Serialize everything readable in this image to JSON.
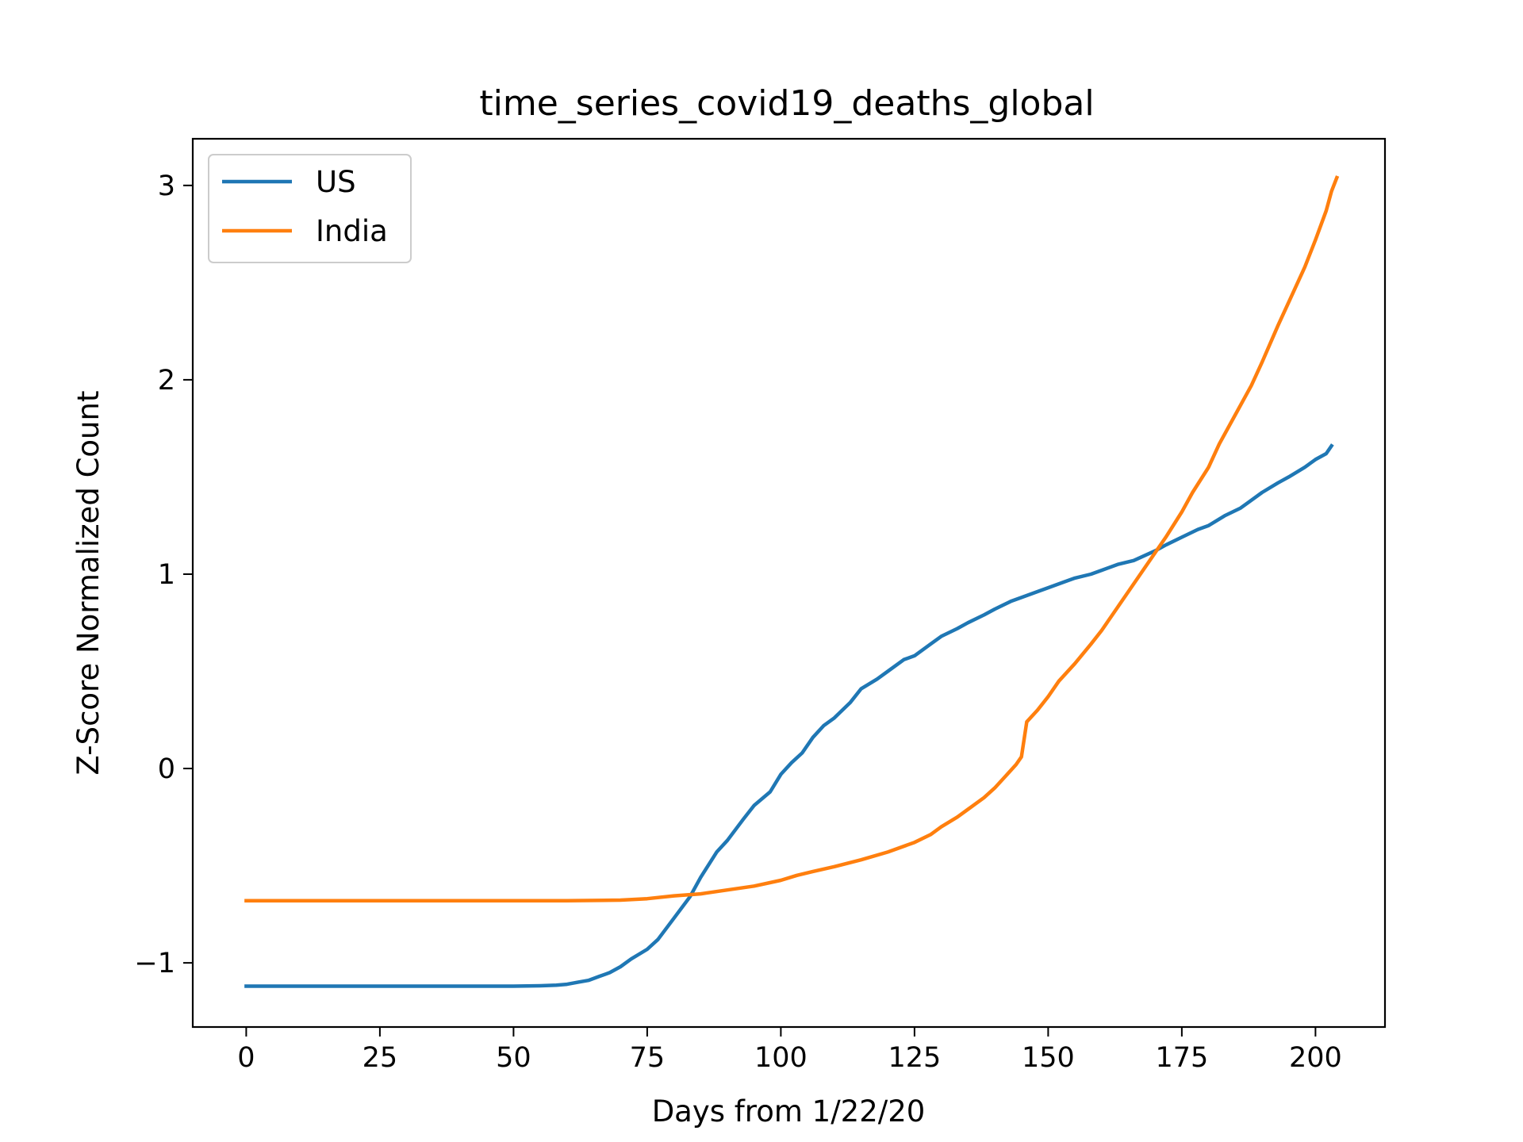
{
  "chart_data": {
    "type": "line",
    "title": "time_series_covid19_deaths_global",
    "xlabel": "Days from 1/22/20",
    "ylabel": "Z-Score Normalized Count",
    "xlim": [
      -10,
      213
    ],
    "ylim": [
      -1.33,
      3.24
    ],
    "xticks": [
      0,
      25,
      50,
      75,
      100,
      125,
      150,
      175,
      200
    ],
    "xtick_labels": [
      "0",
      "25",
      "50",
      "75",
      "100",
      "125",
      "150",
      "175",
      "200"
    ],
    "yticks": [
      -1,
      0,
      1,
      2,
      3
    ],
    "ytick_labels": [
      "−1",
      "0",
      "1",
      "2",
      "3"
    ],
    "legend_position": "top-left",
    "grid": false,
    "series": [
      {
        "name": "US",
        "color": "#1f77b4",
        "points": [
          [
            0,
            -1.12
          ],
          [
            10,
            -1.12
          ],
          [
            20,
            -1.12
          ],
          [
            30,
            -1.12
          ],
          [
            40,
            -1.12
          ],
          [
            50,
            -1.12
          ],
          [
            55,
            -1.118
          ],
          [
            58,
            -1.115
          ],
          [
            60,
            -1.11
          ],
          [
            62,
            -1.1
          ],
          [
            64,
            -1.09
          ],
          [
            66,
            -1.07
          ],
          [
            68,
            -1.05
          ],
          [
            70,
            -1.02
          ],
          [
            72,
            -0.98
          ],
          [
            75,
            -0.93
          ],
          [
            77,
            -0.88
          ],
          [
            80,
            -0.77
          ],
          [
            83,
            -0.66
          ],
          [
            85,
            -0.56
          ],
          [
            88,
            -0.43
          ],
          [
            90,
            -0.37
          ],
          [
            93,
            -0.26
          ],
          [
            95,
            -0.19
          ],
          [
            98,
            -0.12
          ],
          [
            100,
            -0.03
          ],
          [
            102,
            0.03
          ],
          [
            104,
            0.08
          ],
          [
            106,
            0.16
          ],
          [
            108,
            0.22
          ],
          [
            110,
            0.26
          ],
          [
            113,
            0.34
          ],
          [
            115,
            0.41
          ],
          [
            118,
            0.46
          ],
          [
            120,
            0.5
          ],
          [
            123,
            0.56
          ],
          [
            125,
            0.58
          ],
          [
            128,
            0.64
          ],
          [
            130,
            0.68
          ],
          [
            133,
            0.72
          ],
          [
            135,
            0.75
          ],
          [
            138,
            0.79
          ],
          [
            140,
            0.82
          ],
          [
            143,
            0.86
          ],
          [
            145,
            0.88
          ],
          [
            148,
            0.91
          ],
          [
            150,
            0.93
          ],
          [
            153,
            0.96
          ],
          [
            155,
            0.98
          ],
          [
            158,
            1.0
          ],
          [
            160,
            1.02
          ],
          [
            163,
            1.05
          ],
          [
            166,
            1.07
          ],
          [
            170,
            1.12
          ],
          [
            172,
            1.15
          ],
          [
            175,
            1.19
          ],
          [
            178,
            1.23
          ],
          [
            180,
            1.25
          ],
          [
            183,
            1.3
          ],
          [
            186,
            1.34
          ],
          [
            188,
            1.38
          ],
          [
            190,
            1.42
          ],
          [
            193,
            1.47
          ],
          [
            195,
            1.5
          ],
          [
            198,
            1.55
          ],
          [
            200,
            1.59
          ],
          [
            202,
            1.62
          ],
          [
            203,
            1.66
          ]
        ]
      },
      {
        "name": "India",
        "color": "#ff7f0e",
        "points": [
          [
            0,
            -0.68
          ],
          [
            20,
            -0.68
          ],
          [
            40,
            -0.68
          ],
          [
            60,
            -0.68
          ],
          [
            70,
            -0.677
          ],
          [
            75,
            -0.67
          ],
          [
            80,
            -0.655
          ],
          [
            85,
            -0.645
          ],
          [
            90,
            -0.625
          ],
          [
            95,
            -0.605
          ],
          [
            100,
            -0.575
          ],
          [
            103,
            -0.55
          ],
          [
            106,
            -0.53
          ],
          [
            110,
            -0.505
          ],
          [
            115,
            -0.47
          ],
          [
            120,
            -0.43
          ],
          [
            125,
            -0.38
          ],
          [
            128,
            -0.34
          ],
          [
            130,
            -0.3
          ],
          [
            133,
            -0.25
          ],
          [
            135,
            -0.21
          ],
          [
            138,
            -0.15
          ],
          [
            140,
            -0.1
          ],
          [
            142,
            -0.04
          ],
          [
            144,
            0.02
          ],
          [
            145,
            0.06
          ],
          [
            146,
            0.24
          ],
          [
            148,
            0.3
          ],
          [
            150,
            0.37
          ],
          [
            152,
            0.45
          ],
          [
            155,
            0.54
          ],
          [
            158,
            0.64
          ],
          [
            160,
            0.71
          ],
          [
            163,
            0.83
          ],
          [
            165,
            0.91
          ],
          [
            168,
            1.03
          ],
          [
            170,
            1.11
          ],
          [
            172,
            1.19
          ],
          [
            175,
            1.32
          ],
          [
            177,
            1.42
          ],
          [
            180,
            1.55
          ],
          [
            182,
            1.67
          ],
          [
            185,
            1.82
          ],
          [
            188,
            1.97
          ],
          [
            190,
            2.09
          ],
          [
            193,
            2.28
          ],
          [
            195,
            2.4
          ],
          [
            198,
            2.58
          ],
          [
            200,
            2.72
          ],
          [
            202,
            2.87
          ],
          [
            203,
            2.97
          ],
          [
            204,
            3.04
          ]
        ]
      }
    ]
  }
}
